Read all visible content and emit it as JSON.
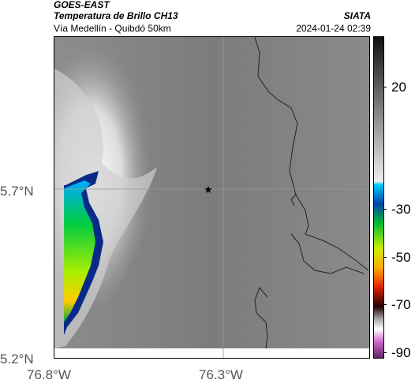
{
  "header": {
    "satellite": "GOES-EAST",
    "product": "Temperatura de Brillo CH13",
    "route": "Vía Medellín - Quibdó 50km",
    "org": "SIATA",
    "datetime": "2024-01-24 02:39"
  },
  "map": {
    "lat_labels": [
      "5.7°N",
      "5.2°N"
    ],
    "lon_labels": [
      "76.8°W",
      "76.3°W"
    ],
    "marker_icon": "star-icon",
    "background_color": "#7a7a7a"
  },
  "colorbar": {
    "ticks": [
      "20",
      "-30",
      "-50",
      "-70",
      "-90"
    ]
  }
}
